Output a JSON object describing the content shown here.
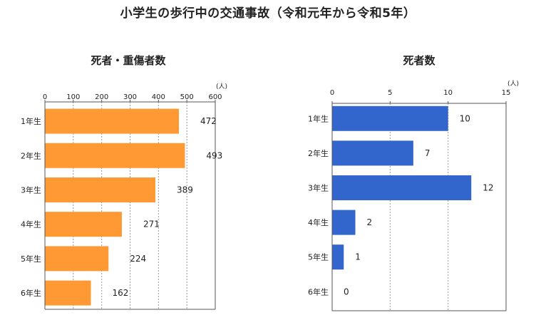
{
  "page_title": "小学生の歩行中の交通事故（令和元年から令和5年）",
  "chart_data": [
    {
      "type": "bar",
      "orientation": "horizontal",
      "title": "死者・重傷者数",
      "unit": "(人)",
      "categories": [
        "1年生",
        "2年生",
        "3年生",
        "4年生",
        "5年生",
        "6年生"
      ],
      "values": [
        472,
        493,
        389,
        271,
        224,
        162
      ],
      "xlim": [
        0,
        600
      ],
      "ticks": [
        0,
        100,
        200,
        300,
        400,
        500,
        600
      ],
      "grid": true,
      "color": "#FF9933"
    },
    {
      "type": "bar",
      "orientation": "horizontal",
      "title": "死者数",
      "unit": "(人)",
      "categories": [
        "1年生",
        "2年生",
        "3年生",
        "4年生",
        "5年生",
        "6年生"
      ],
      "values": [
        10,
        7,
        12,
        2,
        1,
        0
      ],
      "xlim": [
        0,
        15
      ],
      "ticks": [
        0,
        5,
        10,
        15
      ],
      "grid": true,
      "color": "#3366CC"
    }
  ]
}
